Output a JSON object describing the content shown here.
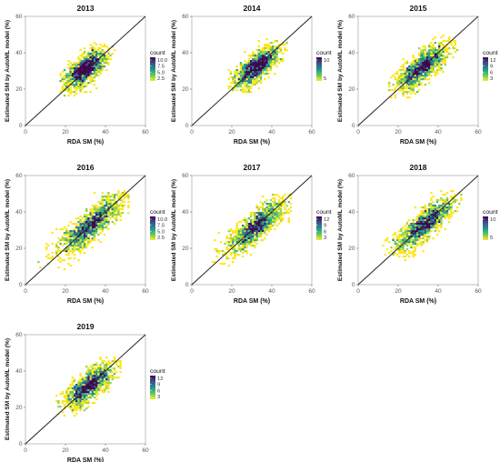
{
  "figure": {
    "panels": [
      {
        "title": "2013",
        "xlabel": "RDA SM (%)",
        "ylabel": "Estimated SM by AutoML model (%)"
      },
      {
        "title": "2014",
        "xlabel": "RDA SM (%)",
        "ylabel": "Estimated SM by AutoML model (%)"
      },
      {
        "title": "2015",
        "xlabel": "RDA SM (%)",
        "ylabel": "Estimated SM by AutoML model (%)"
      },
      {
        "title": "2016",
        "xlabel": "RDA SM (%)",
        "ylabel": "Estimated SM by AutoML model (%)"
      },
      {
        "title": "2017",
        "xlabel": "RDA SM (%)",
        "ylabel": "Estimated SM by AutoML model (%)"
      },
      {
        "title": "2018",
        "xlabel": "RDA SM (%)",
        "ylabel": "Estimated SM by AutoML model (%)"
      },
      {
        "title": "2019",
        "xlabel": "RDA SM (%)",
        "ylabel": "Estimated SM by AutoML model (%)"
      }
    ]
  },
  "chart_data": [
    {
      "type": "heatmap",
      "title": "2013",
      "xlabel": "RDA SM (%)",
      "ylabel": "Estimated SM by AutoML model (%)",
      "xlim": [
        0,
        60
      ],
      "ylim": [
        0,
        60
      ],
      "xticks": [
        "0",
        "20",
        "40",
        "60"
      ],
      "yticks": [
        "0",
        "20",
        "40",
        "60"
      ],
      "reference_line": "1:1",
      "legend": {
        "title": "count",
        "labels": [
          "10.0",
          "7.5",
          "5.0",
          "2.5"
        ],
        "range": [
          1,
          11
        ]
      },
      "cloud": {
        "center": [
          30,
          31
        ],
        "x_spread": [
          17,
          45
        ],
        "y_spread": [
          16,
          46
        ]
      },
      "colors": [
        "#fde725",
        "#5ec962",
        "#21918c",
        "#3b528b",
        "#440154"
      ]
    },
    {
      "type": "heatmap",
      "title": "2014",
      "xlabel": "RDA SM (%)",
      "ylabel": "Estimated SM by AutoML model (%)",
      "xlim": [
        0,
        60
      ],
      "ylim": [
        0,
        60
      ],
      "xticks": [
        "0",
        "20",
        "40",
        "60"
      ],
      "yticks": [
        "0",
        "20",
        "40",
        "60"
      ],
      "reference_line": "1:1",
      "legend": {
        "title": "count",
        "labels": [
          "10",
          "5"
        ],
        "range": [
          1,
          12
        ]
      },
      "cloud": {
        "center": [
          32,
          32
        ],
        "x_spread": [
          18,
          48
        ],
        "y_spread": [
          18,
          48
        ]
      },
      "colors": [
        "#fde725",
        "#5ec962",
        "#21918c",
        "#3b528b",
        "#440154"
      ]
    },
    {
      "type": "heatmap",
      "title": "2015",
      "xlabel": "RDA SM (%)",
      "ylabel": "Estimated SM by AutoML model (%)",
      "xlim": [
        0,
        60
      ],
      "ylim": [
        0,
        60
      ],
      "xticks": [
        "0",
        "20",
        "40",
        "60"
      ],
      "yticks": [
        "0",
        "20",
        "40",
        "60"
      ],
      "reference_line": "1:1",
      "legend": {
        "title": "count",
        "labels": [
          "12",
          "9",
          "6",
          "3"
        ],
        "range": [
          1,
          13
        ]
      },
      "cloud": {
        "center": [
          32,
          32
        ],
        "x_spread": [
          15,
          50
        ],
        "y_spread": [
          15,
          50
        ]
      },
      "colors": [
        "#fde725",
        "#5ec962",
        "#21918c",
        "#3b528b",
        "#440154"
      ]
    },
    {
      "type": "heatmap",
      "title": "2016",
      "xlabel": "RDA SM (%)",
      "ylabel": "Estimated SM by AutoML model (%)",
      "xlim": [
        0,
        60
      ],
      "ylim": [
        0,
        60
      ],
      "xticks": [
        "0",
        "20",
        "40",
        "60"
      ],
      "yticks": [
        "0",
        "20",
        "40",
        "60"
      ],
      "reference_line": "1:1",
      "legend": {
        "title": "count",
        "labels": [
          "10.0",
          "7.5",
          "5.0",
          "2.5"
        ],
        "range": [
          1,
          11
        ]
      },
      "cloud": {
        "center": [
          33,
          33
        ],
        "x_spread": [
          5,
          52
        ],
        "y_spread": [
          5,
          52
        ]
      },
      "colors": [
        "#fde725",
        "#5ec962",
        "#21918c",
        "#3b528b",
        "#440154"
      ]
    },
    {
      "type": "heatmap",
      "title": "2017",
      "xlabel": "RDA SM (%)",
      "ylabel": "Estimated SM by AutoML model (%)",
      "xlim": [
        0,
        60
      ],
      "ylim": [
        0,
        60
      ],
      "xticks": [
        "0",
        "20",
        "40",
        "60"
      ],
      "yticks": [
        "0",
        "20",
        "40",
        "60"
      ],
      "reference_line": "1:1",
      "legend": {
        "title": "count",
        "labels": [
          "12",
          "9",
          "6",
          "3"
        ],
        "range": [
          1,
          13
        ]
      },
      "cloud": {
        "center": [
          32,
          32
        ],
        "x_spread": [
          10,
          50
        ],
        "y_spread": [
          10,
          50
        ]
      },
      "colors": [
        "#fde725",
        "#5ec962",
        "#21918c",
        "#3b528b",
        "#440154"
      ]
    },
    {
      "type": "heatmap",
      "title": "2018",
      "xlabel": "RDA SM (%)",
      "ylabel": "Estimated SM by AutoML model (%)",
      "xlim": [
        0,
        60
      ],
      "ylim": [
        0,
        60
      ],
      "xticks": [
        "0",
        "20",
        "40",
        "60"
      ],
      "yticks": [
        "0",
        "20",
        "40",
        "60"
      ],
      "reference_line": "1:1",
      "legend": {
        "title": "count",
        "labels": [
          "10",
          "5"
        ],
        "range": [
          1,
          12
        ]
      },
      "cloud": {
        "center": [
          33,
          33
        ],
        "x_spread": [
          12,
          52
        ],
        "y_spread": [
          12,
          52
        ]
      },
      "colors": [
        "#fde725",
        "#5ec962",
        "#21918c",
        "#3b528b",
        "#440154"
      ]
    },
    {
      "type": "heatmap",
      "title": "2019",
      "xlabel": "RDA SM (%)",
      "ylabel": "Estimated SM by AutoML model (%)",
      "xlim": [
        0,
        60
      ],
      "ylim": [
        0,
        60
      ],
      "xticks": [
        "0",
        "20",
        "40",
        "60"
      ],
      "yticks": [
        "0",
        "20",
        "40",
        "60"
      ],
      "reference_line": "1:1",
      "legend": {
        "title": "count",
        "labels": [
          "12",
          "9",
          "6",
          "3"
        ],
        "range": [
          1,
          13
        ]
      },
      "cloud": {
        "center": [
          32,
          32
        ],
        "x_spread": [
          15,
          48
        ],
        "y_spread": [
          15,
          48
        ]
      },
      "colors": [
        "#fde725",
        "#5ec962",
        "#21918c",
        "#3b528b",
        "#440154"
      ]
    }
  ]
}
